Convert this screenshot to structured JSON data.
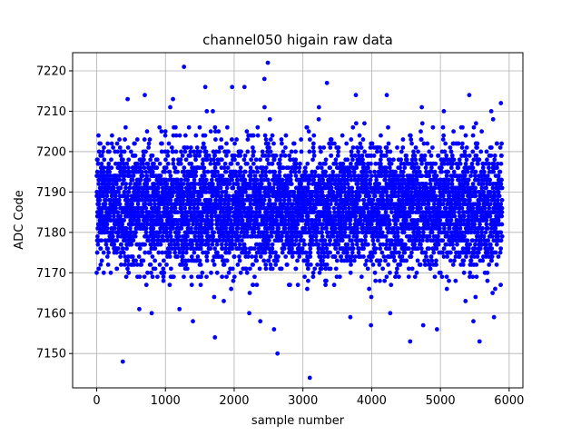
{
  "chart_data": {
    "type": "scatter",
    "title": "channel050 higain raw data",
    "xlabel": "sample number",
    "ylabel": "ADC Code",
    "xlim": [
      -350,
      6200
    ],
    "ylim": [
      7141.5,
      7224.5
    ],
    "xticks": [
      0,
      1000,
      2000,
      3000,
      4000,
      5000,
      6000
    ],
    "yticks": [
      7150,
      7160,
      7170,
      7180,
      7190,
      7200,
      7210,
      7220
    ],
    "grid": true,
    "marker_color": "#0000ff",
    "series": [
      {
        "name": "",
        "n_samples": 5900,
        "typical_range": [
          7164,
          7205
        ],
        "center": 7186,
        "outliers": [
          {
            "x": 1270,
            "y": 7221
          },
          {
            "x": 2490,
            "y": 7222
          },
          {
            "x": 2440,
            "y": 7218
          },
          {
            "x": 3350,
            "y": 7217
          },
          {
            "x": 1580,
            "y": 7216
          },
          {
            "x": 1970,
            "y": 7216
          },
          {
            "x": 2150,
            "y": 7216
          },
          {
            "x": 700,
            "y": 7214
          },
          {
            "x": 4220,
            "y": 7214
          },
          {
            "x": 5420,
            "y": 7214
          },
          {
            "x": 3770,
            "y": 7214
          },
          {
            "x": 1110,
            "y": 7213
          },
          {
            "x": 450,
            "y": 7213
          },
          {
            "x": 5880,
            "y": 7212
          },
          {
            "x": 380,
            "y": 7148
          },
          {
            "x": 2630,
            "y": 7150
          },
          {
            "x": 3100,
            "y": 7144
          },
          {
            "x": 4560,
            "y": 7153
          },
          {
            "x": 5570,
            "y": 7153
          },
          {
            "x": 1720,
            "y": 7154
          },
          {
            "x": 4950,
            "y": 7156
          },
          {
            "x": 2580,
            "y": 7156
          },
          {
            "x": 4750,
            "y": 7157
          },
          {
            "x": 3990,
            "y": 7157
          },
          {
            "x": 1400,
            "y": 7158
          },
          {
            "x": 5480,
            "y": 7158
          },
          {
            "x": 2380,
            "y": 7158
          },
          {
            "x": 3690,
            "y": 7159
          },
          {
            "x": 5780,
            "y": 7159
          },
          {
            "x": 4270,
            "y": 7160
          },
          {
            "x": 800,
            "y": 7160
          },
          {
            "x": 2220,
            "y": 7160
          }
        ]
      }
    ]
  }
}
